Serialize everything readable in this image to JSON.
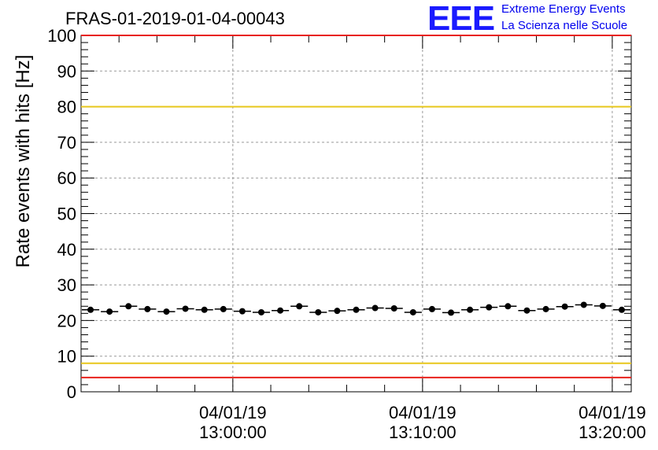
{
  "header": {
    "title": "FRAS-01-2019-01-04-00043",
    "logo_text": "EEE",
    "logo_line1": "Extreme Energy Events",
    "logo_line2": "La Scienza nelle Scuole"
  },
  "chart_data": {
    "type": "scatter",
    "title": "FRAS-01-2019-01-04-00043",
    "xlabel": "",
    "ylabel": "Rate events with hits [Hz]",
    "ylim": [
      0,
      100
    ],
    "yticks": [
      0,
      10,
      20,
      30,
      40,
      50,
      60,
      70,
      80,
      90,
      100
    ],
    "xlim": [
      "04/01/19 12:52:00",
      "04/01/19 13:21:00"
    ],
    "xticks": [
      {
        "line1": "04/01/19",
        "line2": "13:00:00"
      },
      {
        "line1": "04/01/19",
        "line2": "13:10:00"
      },
      {
        "line1": "04/01/19",
        "line2": "13:20:00"
      }
    ],
    "grid": true,
    "reference_lines": [
      {
        "y": 100,
        "color": "#e8211c"
      },
      {
        "y": 80,
        "color": "#e8c71c"
      },
      {
        "y": 8,
        "color": "#e8c71c"
      },
      {
        "y": 4,
        "color": "#e8211c"
      }
    ],
    "series": [
      {
        "marker_color": "#000000",
        "x": [
          "12:52:30",
          "12:53:30",
          "12:54:30",
          "12:55:30",
          "12:56:30",
          "12:57:30",
          "12:58:30",
          "12:59:30",
          "13:00:30",
          "13:01:30",
          "13:02:30",
          "13:03:30",
          "13:04:30",
          "13:05:30",
          "13:06:30",
          "13:07:30",
          "13:08:30",
          "13:09:30",
          "13:10:30",
          "13:11:30",
          "13:12:30",
          "13:13:30",
          "13:14:30",
          "13:15:30",
          "13:16:30",
          "13:17:30",
          "13:18:30",
          "13:19:30",
          "13:20:30"
        ],
        "values": [
          23.0,
          22.5,
          24.0,
          23.2,
          22.5,
          23.3,
          23.0,
          23.2,
          22.6,
          22.3,
          22.8,
          24.0,
          22.3,
          22.7,
          23.0,
          23.5,
          23.4,
          22.3,
          23.2,
          22.2,
          23.0,
          23.7,
          24.0,
          22.8,
          23.2,
          23.9,
          24.4,
          24.1,
          23.0
        ]
      }
    ]
  }
}
